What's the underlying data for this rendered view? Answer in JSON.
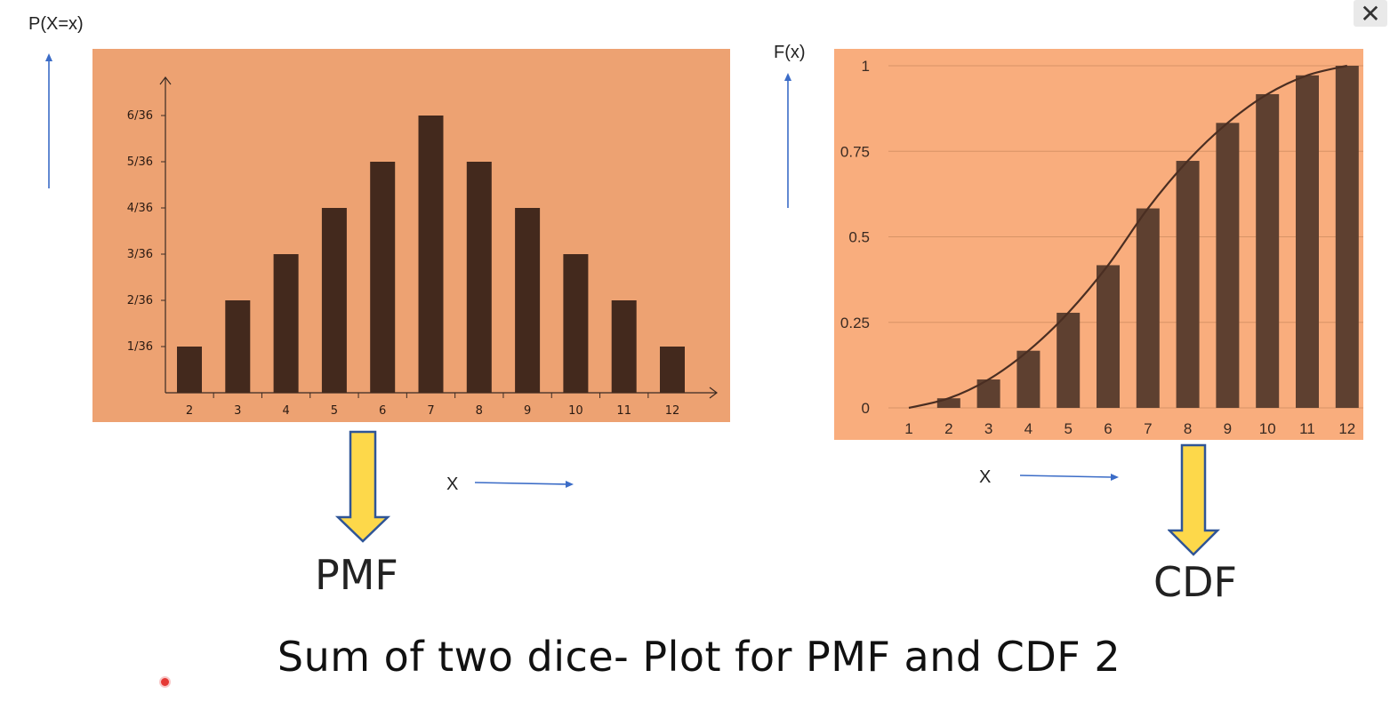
{
  "window": {
    "close_label": "✕"
  },
  "slide": {
    "title": "Sum of two dice- Plot for PMF and CDF 2",
    "pmf_label": "PMF",
    "cdf_label": "CDF",
    "pmf_y_axis_label": "P(X=x)",
    "cdf_y_axis_label": "F(x)",
    "pmf_x_axis_label": "X",
    "cdf_x_axis_label": "X"
  },
  "colors": {
    "pmf_bg": "#eda272",
    "cdf_bg": "#f9ad7d",
    "bar": "#43291d",
    "cdf_bar": "#5e4030",
    "arrow_blue": "#3b6cc7",
    "arrow_yellow": "#fdd84a",
    "arrow_yellow_border": "#2f5597"
  },
  "chart_data": [
    {
      "type": "bar",
      "categories": [
        "2",
        "3",
        "4",
        "5",
        "6",
        "7",
        "8",
        "9",
        "10",
        "11",
        "12"
      ],
      "values": [
        1,
        2,
        3,
        4,
        5,
        6,
        5,
        4,
        3,
        2,
        1
      ],
      "y_tick_labels": [
        "1/36",
        "2/36",
        "3/36",
        "4/36",
        "5/36",
        "6/36"
      ],
      "y_tick_values": [
        1,
        2,
        3,
        4,
        5,
        6
      ],
      "ylim": [
        0,
        7
      ],
      "grid": false
    },
    {
      "type": "bar",
      "categories": [
        "1",
        "2",
        "3",
        "4",
        "5",
        "6",
        "7",
        "8",
        "9",
        "10",
        "11",
        "12"
      ],
      "values": [
        0,
        0.028,
        0.083,
        0.167,
        0.278,
        0.417,
        0.583,
        0.722,
        0.833,
        0.917,
        0.972,
        1.0
      ],
      "y_tick_labels": [
        "0",
        "0.25",
        "0.5",
        "0.75",
        "1"
      ],
      "y_tick_values": [
        0,
        0.25,
        0.5,
        0.75,
        1
      ],
      "ylim": [
        0,
        1
      ],
      "grid": true,
      "overlay": "line"
    }
  ]
}
